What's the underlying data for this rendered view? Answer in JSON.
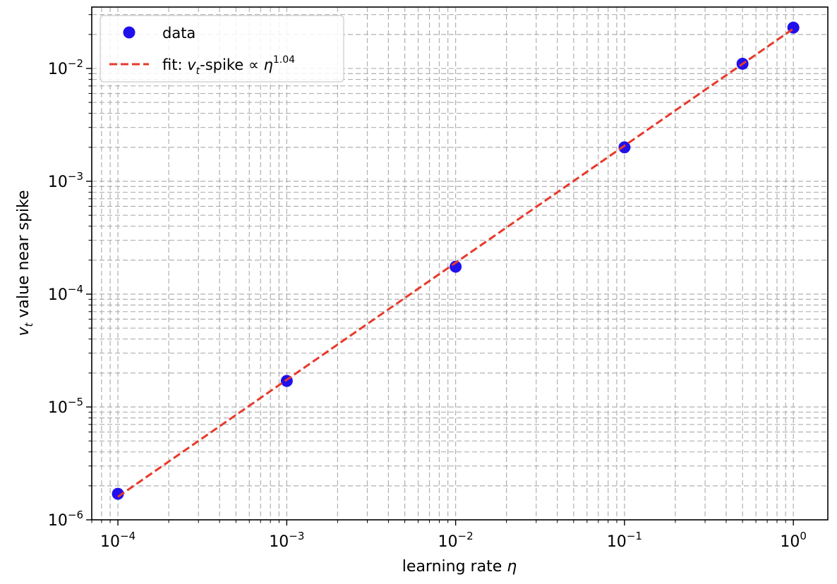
{
  "chart_data": {
    "type": "scatter",
    "title": "",
    "xlabel": {
      "main": "learning rate ",
      "symbol": "η"
    },
    "ylabel": {
      "var": "v",
      "sub": "t",
      "rest": " value near spike"
    },
    "xscale": "log",
    "yscale": "log",
    "xlim": [
      7e-05,
      1.6
    ],
    "ylim": [
      1e-06,
      0.035
    ],
    "grid": "major and minor, dashed",
    "legend_position": "top-left",
    "x_ticks": [
      {
        "value": 0.0001,
        "base": "10",
        "exp": "−4"
      },
      {
        "value": 0.001,
        "base": "10",
        "exp": "−3"
      },
      {
        "value": 0.01,
        "base": "10",
        "exp": "−2"
      },
      {
        "value": 0.1,
        "base": "10",
        "exp": "−1"
      },
      {
        "value": 1,
        "base": "10",
        "exp": "0"
      }
    ],
    "y_ticks": [
      {
        "value": 1e-06,
        "base": "10",
        "exp": "−6"
      },
      {
        "value": 1e-05,
        "base": "10",
        "exp": "−5"
      },
      {
        "value": 0.0001,
        "base": "10",
        "exp": "−4"
      },
      {
        "value": 0.001,
        "base": "10",
        "exp": "−3"
      },
      {
        "value": 0.01,
        "base": "10",
        "exp": "−2"
      }
    ],
    "series": [
      {
        "name": "data",
        "kind": "scatter",
        "color": "#1f10ec",
        "x": [
          0.0001,
          0.001,
          0.01,
          0.1,
          0.5,
          1.0
        ],
        "y": [
          1.7e-06,
          1.7e-05,
          0.000175,
          0.002,
          0.011,
          0.023
        ]
      },
      {
        "name": "fit: v_t-spike ∝ η^1.04",
        "kind": "line",
        "style": "dashed",
        "color": "#e8392a",
        "exponent": 1.04,
        "x": [
          0.0001,
          1.0
        ],
        "y": [
          1.6e-06,
          0.0225
        ]
      }
    ],
    "legend": {
      "data_label": "data",
      "fit_prefix": "fit: ",
      "fit_var": "v",
      "fit_sub": "t",
      "fit_mid": "-spike ∝ ",
      "fit_symbol": "η",
      "fit_exp": "1.04"
    }
  }
}
